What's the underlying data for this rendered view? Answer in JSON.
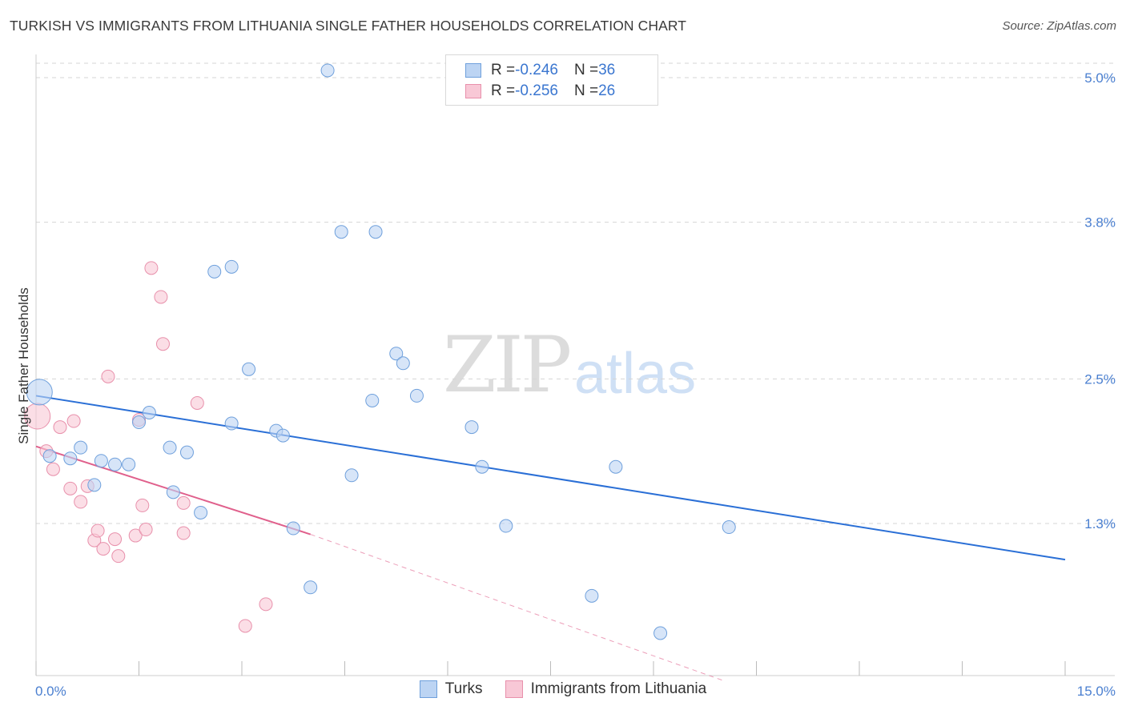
{
  "title": "TURKISH VS IMMIGRANTS FROM LITHUANIA SINGLE FATHER HOUSEHOLDS CORRELATION CHART",
  "source": "Source: ZipAtlas.com",
  "watermark": {
    "zip": "ZIP",
    "atlas": "atlas"
  },
  "legend": {
    "rows": [
      {
        "r_label": "R = ",
        "r_value": "-0.246",
        "n_label": "N = ",
        "n_value": "36"
      },
      {
        "r_label": "R = ",
        "r_value": "-0.256",
        "n_label": "N = ",
        "n_value": "26"
      }
    ]
  },
  "bottom_legend": {
    "turks": "Turks",
    "lithuania": "Immigrants from Lithuania"
  },
  "colors": {
    "turks_fill": "#bcd4f3",
    "turks_stroke": "#6fa0dc",
    "turks_line": "#2a6fd6",
    "lith_fill": "#f8c8d6",
    "lith_stroke": "#e890ab",
    "lith_line": "#e0608c",
    "grid": "#d5d5d5",
    "axis_label": "#4a7fd0"
  },
  "chart_data": {
    "type": "scatter",
    "title": "TURKISH VS IMMIGRANTS FROM LITHUANIA SINGLE FATHER HOUSEHOLDS CORRELATION CHART",
    "xlabel": "",
    "ylabel": "Single Father Households",
    "xlim": [
      0,
      15
    ],
    "ylim": [
      0,
      5.2
    ],
    "x_tick_labels": [
      {
        "value": 0,
        "label": "0.0%"
      },
      {
        "value": 15,
        "label": "15.0%"
      }
    ],
    "y_tick_labels": [
      {
        "value": 1.3,
        "label": "1.3%"
      },
      {
        "value": 2.5,
        "label": "2.5%"
      },
      {
        "value": 3.8,
        "label": "3.8%"
      },
      {
        "value": 5.0,
        "label": "5.0%"
      }
    ],
    "series": [
      {
        "name": "Turks",
        "r": -0.246,
        "n": 36,
        "trend": {
          "x0": 0,
          "y0": 2.36,
          "x1": 15,
          "y1": 1.0
        },
        "points": [
          {
            "x": 0.05,
            "y": 2.39,
            "big": true
          },
          {
            "x": 0.2,
            "y": 1.86
          },
          {
            "x": 0.5,
            "y": 1.84
          },
          {
            "x": 0.65,
            "y": 1.93
          },
          {
            "x": 0.85,
            "y": 1.62
          },
          {
            "x": 0.95,
            "y": 1.82
          },
          {
            "x": 1.15,
            "y": 1.79
          },
          {
            "x": 1.35,
            "y": 1.79
          },
          {
            "x": 1.5,
            "y": 2.14
          },
          {
            "x": 1.65,
            "y": 2.22
          },
          {
            "x": 1.95,
            "y": 1.93
          },
          {
            "x": 2.0,
            "y": 1.56
          },
          {
            "x": 2.2,
            "y": 1.89
          },
          {
            "x": 2.4,
            "y": 1.39
          },
          {
            "x": 2.6,
            "y": 3.39
          },
          {
            "x": 2.85,
            "y": 3.43
          },
          {
            "x": 2.85,
            "y": 2.13
          },
          {
            "x": 3.1,
            "y": 2.58
          },
          {
            "x": 3.5,
            "y": 2.07
          },
          {
            "x": 3.6,
            "y": 2.03
          },
          {
            "x": 3.75,
            "y": 1.26
          },
          {
            "x": 4.0,
            "y": 0.77
          },
          {
            "x": 4.25,
            "y": 5.06
          },
          {
            "x": 4.45,
            "y": 3.72
          },
          {
            "x": 4.6,
            "y": 1.7
          },
          {
            "x": 4.95,
            "y": 3.72
          },
          {
            "x": 4.9,
            "y": 2.32
          },
          {
            "x": 5.25,
            "y": 2.71
          },
          {
            "x": 5.35,
            "y": 2.63
          },
          {
            "x": 5.55,
            "y": 2.36
          },
          {
            "x": 6.35,
            "y": 2.1
          },
          {
            "x": 6.5,
            "y": 1.77
          },
          {
            "x": 6.85,
            "y": 1.28
          },
          {
            "x": 8.1,
            "y": 0.7
          },
          {
            "x": 8.45,
            "y": 1.77
          },
          {
            "x": 9.1,
            "y": 0.39
          },
          {
            "x": 10.1,
            "y": 1.27
          }
        ]
      },
      {
        "name": "Immigrants from Lithuania",
        "r": -0.256,
        "n": 26,
        "trend": {
          "x0": 0,
          "y0": 1.94,
          "x1": 4.0,
          "y1": 1.21
        },
        "trend_dashed": {
          "x0": 4.0,
          "y0": 1.21,
          "x1": 10.0,
          "y1": 0.0
        },
        "points": [
          {
            "x": 0.02,
            "y": 2.19,
            "big": true
          },
          {
            "x": 0.15,
            "y": 1.9
          },
          {
            "x": 0.25,
            "y": 1.75
          },
          {
            "x": 0.35,
            "y": 2.1
          },
          {
            "x": 0.5,
            "y": 1.59
          },
          {
            "x": 0.55,
            "y": 2.15
          },
          {
            "x": 0.65,
            "y": 1.48
          },
          {
            "x": 0.75,
            "y": 1.61
          },
          {
            "x": 0.85,
            "y": 1.16
          },
          {
            "x": 0.9,
            "y": 1.24
          },
          {
            "x": 0.98,
            "y": 1.09
          },
          {
            "x": 1.05,
            "y": 2.52
          },
          {
            "x": 1.15,
            "y": 1.17
          },
          {
            "x": 1.2,
            "y": 1.03
          },
          {
            "x": 1.45,
            "y": 1.2
          },
          {
            "x": 1.5,
            "y": 2.16
          },
          {
            "x": 1.55,
            "y": 1.45
          },
          {
            "x": 1.6,
            "y": 1.25
          },
          {
            "x": 1.68,
            "y": 3.42
          },
          {
            "x": 1.82,
            "y": 3.18
          },
          {
            "x": 1.85,
            "y": 2.79
          },
          {
            "x": 2.15,
            "y": 1.22
          },
          {
            "x": 2.15,
            "y": 1.47
          },
          {
            "x": 2.35,
            "y": 2.3
          },
          {
            "x": 3.05,
            "y": 0.45
          },
          {
            "x": 3.35,
            "y": 0.63
          }
        ]
      }
    ]
  }
}
